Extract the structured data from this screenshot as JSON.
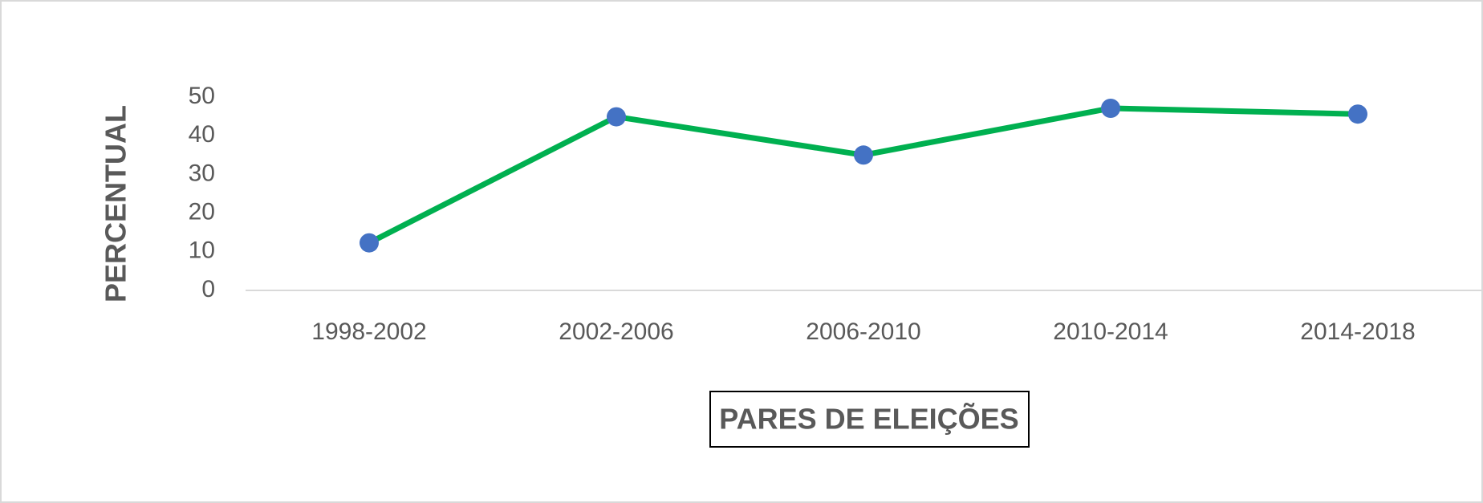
{
  "chart_data": {
    "type": "line",
    "x_label": "PARES DE ELEIÇÕES",
    "y_label": "PERCENTUAL",
    "categories": [
      "1998-2002",
      "2002-2006",
      "2006-2010",
      "2010-2014",
      "2014-2018"
    ],
    "series": [
      {
        "name": "Percentual",
        "color": "#00b050",
        "marker_color": "#4472c4",
        "values": [
          12.3,
          44.9,
          35.0,
          47.1,
          45.6
        ]
      }
    ],
    "ylim": [
      0,
      50
    ],
    "yticks": [
      0,
      10,
      20,
      30,
      40,
      50
    ],
    "grid": false
  }
}
